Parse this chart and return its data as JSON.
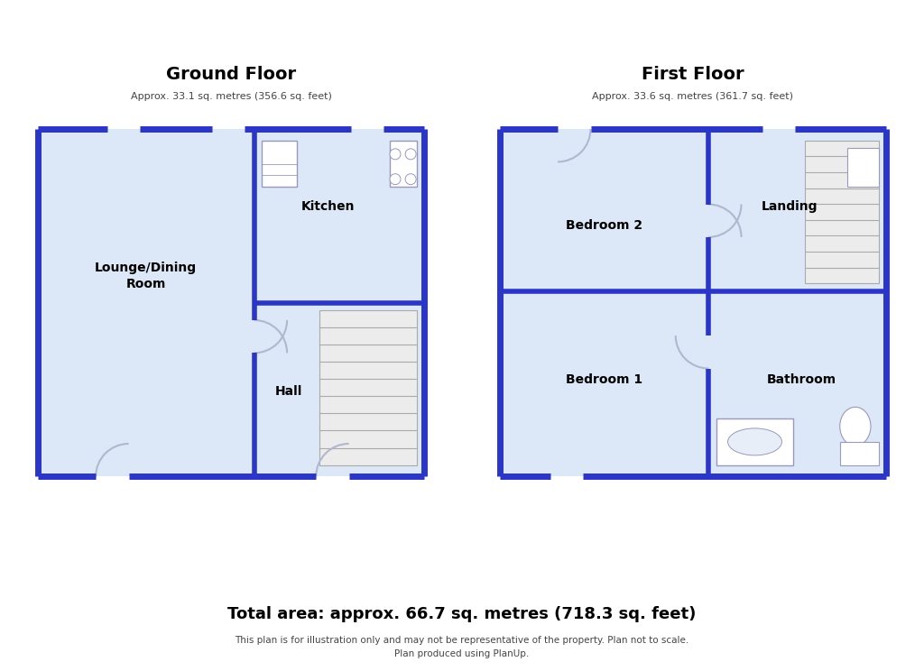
{
  "bg_color": "#ffffff",
  "floor_fill": "#dce8f8",
  "wall_color": "#2b35c8",
  "wall_lw": 5.0,
  "inner_wall_lw": 4.0,
  "door_arc_color": "#b0b8d0",
  "stair_line_color": "#b0b0b0",
  "stair_bg": "#e8e8e8",
  "fixture_fill": "#ffffff",
  "fixture_edge": "#9999bb",
  "title_gf": "Ground Floor",
  "subtitle_gf": "Approx. 33.1 sq. metres (356.6 sq. feet)",
  "title_ff": "First Floor",
  "subtitle_ff": "Approx. 33.6 sq. metres (361.7 sq. feet)",
  "total_area": "Total area: approx. 66.7 sq. metres (718.3 sq. feet)",
  "footer1": "This plan is for illustration only and may not be representative of the property. Plan not to scale.",
  "footer2": "Plan produced using PlanUp.",
  "label_kitchen": "Kitchen",
  "label_lounge": "Lounge/Dining\nRoom",
  "label_hall": "Hall",
  "label_bed1": "Bedroom 1",
  "label_bed2": "Bedroom 2",
  "label_landing": "Landing",
  "label_bathroom": "Bathroom"
}
